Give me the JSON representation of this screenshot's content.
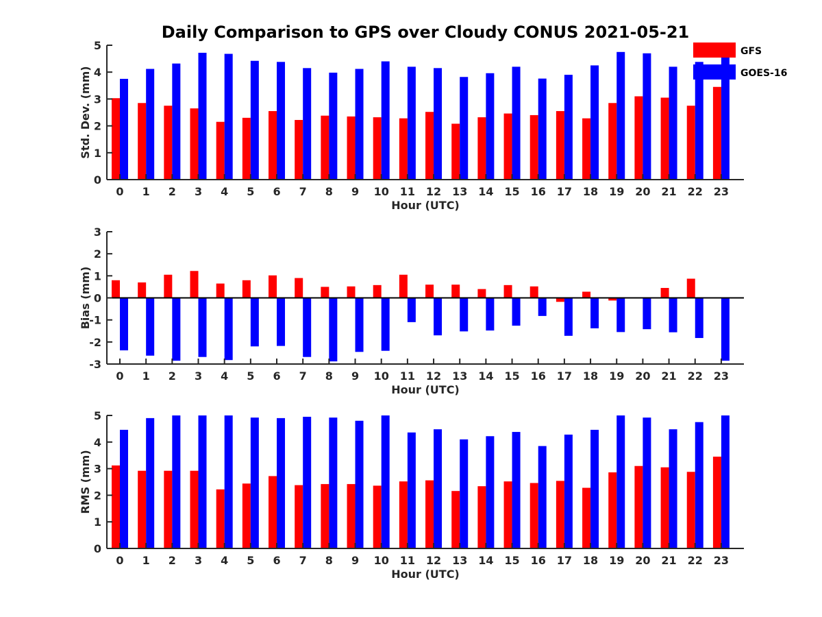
{
  "title": "Daily Comparison to GPS over Cloudy CONUS 2021-05-21",
  "colors": {
    "GFS": "#ff0000",
    "GOES-16": "#0000ff"
  },
  "chart_data": [
    {
      "type": "bar",
      "ylabel": "Std. Dev. (mm)",
      "xlabel": "Hour (UTC)",
      "ylim": [
        0,
        5
      ],
      "yticks": [
        0,
        1,
        2,
        3,
        4,
        5
      ],
      "legend": "top-right",
      "categories": [
        "0",
        "1",
        "2",
        "3",
        "4",
        "5",
        "6",
        "7",
        "8",
        "9",
        "10",
        "11",
        "12",
        "13",
        "14",
        "15",
        "16",
        "17",
        "18",
        "19",
        "20",
        "21",
        "22",
        "23"
      ],
      "series": [
        {
          "name": "GFS",
          "values": [
            3.03,
            2.85,
            2.75,
            2.65,
            2.15,
            2.3,
            2.55,
            2.22,
            2.38,
            2.35,
            2.32,
            2.28,
            2.52,
            2.08,
            2.32,
            2.46,
            2.4,
            2.55,
            2.28,
            2.85,
            3.1,
            3.05,
            2.75,
            3.45
          ]
        },
        {
          "name": "GOES-16",
          "values": [
            3.75,
            4.12,
            4.32,
            4.72,
            4.68,
            4.42,
            4.38,
            4.15,
            3.98,
            4.12,
            4.4,
            4.2,
            4.15,
            3.82,
            3.96,
            4.2,
            3.76,
            3.9,
            4.25,
            4.75,
            4.7,
            4.2,
            4.38,
            4.6
          ]
        }
      ]
    },
    {
      "type": "bar",
      "ylabel": "Bias (mm)",
      "xlabel": "Hour (UTC)",
      "ylim": [
        -3,
        3
      ],
      "yticks": [
        -3,
        -2,
        -1,
        0,
        1,
        2,
        3
      ],
      "categories": [
        "0",
        "1",
        "2",
        "3",
        "4",
        "5",
        "6",
        "7",
        "8",
        "9",
        "10",
        "11",
        "12",
        "13",
        "14",
        "15",
        "16",
        "17",
        "18",
        "19",
        "20",
        "21",
        "22",
        "23"
      ],
      "series": [
        {
          "name": "GFS",
          "values": [
            0.8,
            0.7,
            1.05,
            1.22,
            0.65,
            0.8,
            1.02,
            0.9,
            0.5,
            0.52,
            0.58,
            1.05,
            0.6,
            0.6,
            0.4,
            0.58,
            0.52,
            -0.18,
            0.28,
            -0.12,
            0.03,
            0.45,
            0.87,
            0.0
          ]
        },
        {
          "name": "GOES-16",
          "values": [
            -2.38,
            -2.62,
            -2.85,
            -2.68,
            -2.82,
            -2.2,
            -2.18,
            -2.68,
            -2.88,
            -2.45,
            -2.4,
            -1.1,
            -1.7,
            -1.52,
            -1.48,
            -1.26,
            -0.82,
            -1.72,
            -1.38,
            -1.55,
            -1.42,
            -1.56,
            -1.82,
            -2.85
          ]
        }
      ]
    },
    {
      "type": "bar",
      "ylabel": "RMS (mm)",
      "xlabel": "Hour (UTC)",
      "ylim": [
        0,
        5
      ],
      "yticks": [
        0,
        1,
        2,
        3,
        4,
        5
      ],
      "categories": [
        "0",
        "1",
        "2",
        "3",
        "4",
        "5",
        "6",
        "7",
        "8",
        "9",
        "10",
        "11",
        "12",
        "13",
        "14",
        "15",
        "16",
        "17",
        "18",
        "19",
        "20",
        "21",
        "22",
        "23"
      ],
      "series": [
        {
          "name": "GFS",
          "values": [
            3.12,
            2.92,
            2.92,
            2.92,
            2.22,
            2.44,
            2.72,
            2.38,
            2.42,
            2.42,
            2.36,
            2.52,
            2.56,
            2.16,
            2.34,
            2.52,
            2.46,
            2.54,
            2.28,
            2.86,
            3.1,
            3.05,
            2.88,
            3.45
          ]
        },
        {
          "name": "GOES-16",
          "values": [
            4.46,
            4.9,
            5.0,
            5.0,
            5.0,
            4.92,
            4.9,
            4.95,
            4.92,
            4.8,
            5.0,
            4.36,
            4.48,
            4.1,
            4.22,
            4.38,
            3.85,
            4.28,
            4.46,
            5.0,
            4.92,
            4.48,
            4.75,
            5.0
          ]
        }
      ]
    }
  ]
}
